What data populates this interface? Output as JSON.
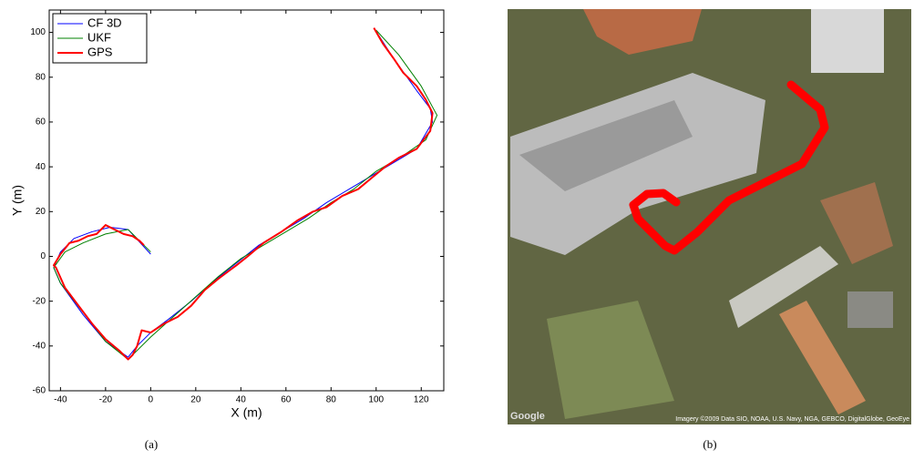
{
  "chart_data": {
    "type": "line",
    "xlabel": "X (m)",
    "ylabel": "Y (m)",
    "xlim": [
      -45,
      130
    ],
    "xticks": [
      -40,
      -20,
      0,
      20,
      40,
      60,
      80,
      100,
      120
    ],
    "ylim": [
      -60,
      110
    ],
    "yticks": [
      -60,
      -40,
      -20,
      0,
      20,
      40,
      60,
      80,
      100
    ],
    "legend": "upper left",
    "grid": false,
    "series": [
      {
        "name": "CF 3D",
        "color": "#0000ff",
        "width": 1,
        "x": [
          99,
          108,
          118,
          124,
          125,
          118,
          108,
          98,
          88,
          78,
          68,
          58,
          48,
          38,
          28,
          18,
          8,
          0,
          -6,
          -10,
          -20,
          -30,
          -40,
          -43,
          -40,
          -34,
          -26,
          -18,
          -10,
          0
        ],
        "values": [
          102,
          88,
          74,
          66,
          60,
          48,
          42,
          36,
          30,
          24,
          17,
          11,
          5,
          -3,
          -11,
          -20,
          -28,
          -34,
          -40,
          -45,
          -38,
          -26,
          -12,
          -5,
          2,
          8,
          11,
          13,
          12,
          1
        ]
      },
      {
        "name": "UKF",
        "color": "#008000",
        "width": 1,
        "x": [
          100,
          110,
          120,
          127,
          122,
          112,
          100,
          90,
          80,
          70,
          60,
          50,
          40,
          30,
          20,
          10,
          0,
          -6,
          -10,
          -20,
          -30,
          -40,
          -43,
          -38,
          -30,
          -20,
          -10,
          0
        ],
        "values": [
          101,
          90,
          76,
          63,
          52,
          45,
          38,
          30,
          24,
          17,
          11,
          5,
          -1,
          -9,
          -18,
          -27,
          -36,
          -42,
          -46,
          -38,
          -25,
          -12,
          -5,
          2,
          6,
          10,
          12,
          2
        ]
      },
      {
        "name": "GPS",
        "color": "#ff0000",
        "width": 2,
        "x": [
          99,
          103,
          108,
          112,
          118,
          122,
          125,
          124,
          118,
          110,
          104,
          98,
          92,
          85,
          78,
          72,
          65,
          58,
          50,
          43,
          38,
          30,
          24,
          18,
          12,
          6,
          0,
          -4,
          -6,
          -8,
          -10,
          -14,
          -20,
          -26,
          -32,
          -38,
          -42,
          -43,
          -40,
          -36,
          -32,
          -28,
          -24,
          -20,
          -16,
          -12,
          -8,
          -5,
          -3
        ],
        "values": [
          102,
          95,
          88,
          82,
          76,
          70,
          64,
          56,
          48,
          44,
          40,
          35,
          30,
          27,
          22,
          20,
          16,
          11,
          6,
          0,
          -4,
          -10,
          -15,
          -22,
          -27,
          -30,
          -34,
          -33,
          -40,
          -44,
          -46,
          -42,
          -37,
          -30,
          -22,
          -14,
          -5,
          -4,
          1,
          6,
          7,
          9,
          10,
          14,
          12,
          10,
          9,
          7,
          5
        ]
      }
    ]
  },
  "captions": [
    "(a)",
    "(b)"
  ],
  "map": {
    "credit": "Imagery ©2009 Data SIO, NOAA, U.S. Navy, NGA, GEBCO, DigitalGlobe, GeoEye",
    "logo": "Google"
  }
}
